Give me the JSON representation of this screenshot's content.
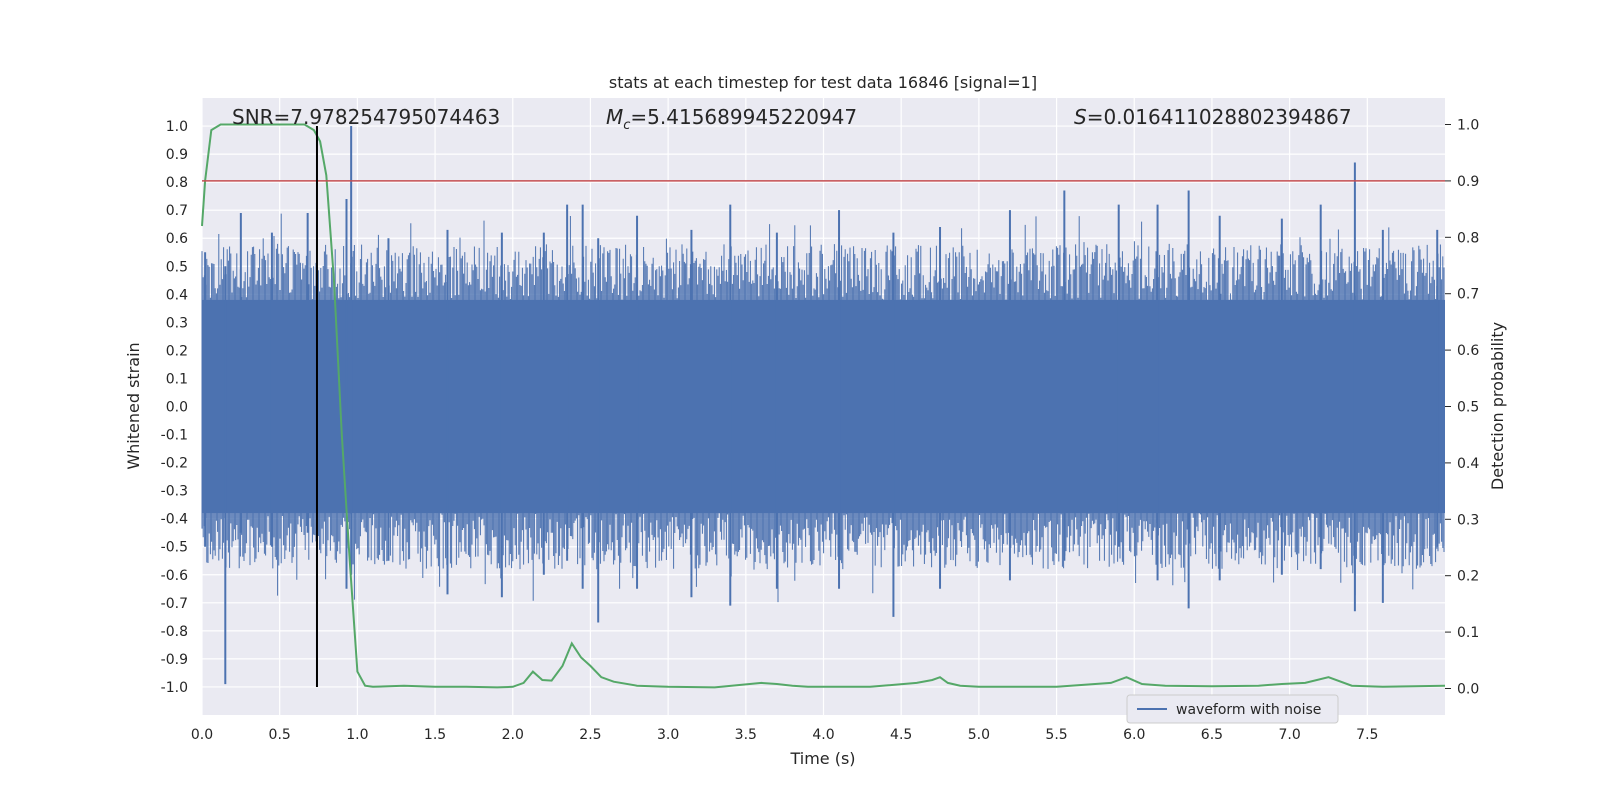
{
  "chart_data": {
    "type": "line",
    "title": "stats at each timestep for test data 16846 [signal=1]",
    "xlabel": "Time (s)",
    "ylabel": "Whitened strain",
    "y2label": "Detection probability",
    "xlim": [
      0.0,
      8.0
    ],
    "ylim": [
      -1.1,
      1.1
    ],
    "y2lim": [
      -0.047,
      1.047
    ],
    "xticks": [
      "0.0",
      "0.5",
      "1.0",
      "1.5",
      "2.0",
      "2.5",
      "3.0",
      "3.5",
      "4.0",
      "4.5",
      "5.0",
      "5.5",
      "6.0",
      "6.5",
      "7.0",
      "7.5"
    ],
    "yticks": [
      "1.0",
      "0.9",
      "0.8",
      "0.7",
      "0.6",
      "0.5",
      "0.4",
      "0.3",
      "0.2",
      "0.1",
      "0.0",
      "-0.1",
      "-0.2",
      "-0.3",
      "-0.4",
      "-0.5",
      "-0.6",
      "-0.7",
      "-0.8",
      "-0.9",
      "-1.0"
    ],
    "y2ticks": [
      "1.0",
      "0.9",
      "0.8",
      "0.7",
      "0.6",
      "0.5",
      "0.4",
      "0.3",
      "0.2",
      "0.1",
      "0.0"
    ],
    "grid": true,
    "legend": {
      "placement": "bottom-right",
      "entries": [
        "waveform with noise"
      ]
    },
    "annotations": {
      "snr": "SNR=7.978254795074463",
      "mc_symbol": "M",
      "mc_sub": "c",
      "mc_value": "=5.415689945220947",
      "s_symbol": "S",
      "s_value": "=0.016411028802394867"
    },
    "threshold": {
      "axis": "right",
      "value": 0.9,
      "color": "#c44e52"
    },
    "marker_time": 0.74,
    "series": [
      {
        "name": "waveform with noise",
        "axis": "left",
        "color": "#4c72b0",
        "band": [
          -0.38,
          0.38
        ],
        "spikes": [
          [
            0.02,
            0.55,
            -0.5
          ],
          [
            0.15,
            0.5,
            -0.99
          ],
          [
            0.25,
            0.69,
            -0.45
          ],
          [
            0.45,
            0.62,
            -0.5
          ],
          [
            0.68,
            0.69,
            -0.45
          ],
          [
            0.96,
            1.0,
            -0.6
          ],
          [
            0.93,
            0.74,
            -0.65
          ],
          [
            1.2,
            0.6,
            -0.55
          ],
          [
            1.58,
            0.63,
            -0.67
          ],
          [
            1.93,
            0.62,
            -0.68
          ],
          [
            2.2,
            0.62,
            -0.6
          ],
          [
            2.35,
            0.72,
            -0.55
          ],
          [
            2.45,
            0.72,
            -0.65
          ],
          [
            2.55,
            0.6,
            -0.77
          ],
          [
            2.8,
            0.68,
            -0.65
          ],
          [
            3.15,
            0.63,
            -0.68
          ],
          [
            3.4,
            0.72,
            -0.71
          ],
          [
            3.7,
            0.62,
            -0.65
          ],
          [
            4.1,
            0.7,
            -0.65
          ],
          [
            4.45,
            0.62,
            -0.75
          ],
          [
            4.75,
            0.64,
            -0.65
          ],
          [
            5.2,
            0.7,
            -0.62
          ],
          [
            5.55,
            0.77,
            -0.55
          ],
          [
            5.9,
            0.72,
            -0.5
          ],
          [
            6.15,
            0.72,
            -0.62
          ],
          [
            6.35,
            0.77,
            -0.72
          ],
          [
            6.55,
            0.68,
            -0.62
          ],
          [
            6.95,
            0.67,
            -0.6
          ],
          [
            7.2,
            0.72,
            -0.58
          ],
          [
            7.42,
            0.87,
            -0.73
          ],
          [
            7.6,
            0.63,
            -0.7
          ],
          [
            7.95,
            0.63,
            -0.5
          ]
        ]
      },
      {
        "name": "detection probability",
        "axis": "right",
        "color": "#55a868",
        "x": [
          0.0,
          0.02,
          0.06,
          0.12,
          0.3,
          0.5,
          0.66,
          0.72,
          0.76,
          0.8,
          0.85,
          0.9,
          0.95,
          1.0,
          1.05,
          1.1,
          1.2,
          1.3,
          1.5,
          1.7,
          1.9,
          2.0,
          2.07,
          2.13,
          2.19,
          2.25,
          2.32,
          2.38,
          2.44,
          2.5,
          2.57,
          2.65,
          2.8,
          3.0,
          3.3,
          3.6,
          3.7,
          3.8,
          3.9,
          4.0,
          4.3,
          4.6,
          4.7,
          4.75,
          4.8,
          4.88,
          5.0,
          5.2,
          5.5,
          5.85,
          5.95,
          6.05,
          6.2,
          6.5,
          6.8,
          6.95,
          7.1,
          7.25,
          7.4,
          7.6,
          7.8,
          8.0
        ],
        "y": [
          0.82,
          0.9,
          0.99,
          1.0,
          1.0,
          1.0,
          1.0,
          0.99,
          0.97,
          0.91,
          0.72,
          0.45,
          0.23,
          0.03,
          0.005,
          0.003,
          0.004,
          0.005,
          0.003,
          0.003,
          0.002,
          0.003,
          0.01,
          0.03,
          0.015,
          0.014,
          0.04,
          0.08,
          0.055,
          0.04,
          0.02,
          0.012,
          0.005,
          0.003,
          0.002,
          0.01,
          0.008,
          0.005,
          0.003,
          0.003,
          0.003,
          0.01,
          0.015,
          0.02,
          0.01,
          0.005,
          0.003,
          0.003,
          0.003,
          0.01,
          0.02,
          0.008,
          0.005,
          0.004,
          0.005,
          0.008,
          0.01,
          0.02,
          0.005,
          0.003,
          0.004,
          0.005
        ]
      }
    ]
  }
}
